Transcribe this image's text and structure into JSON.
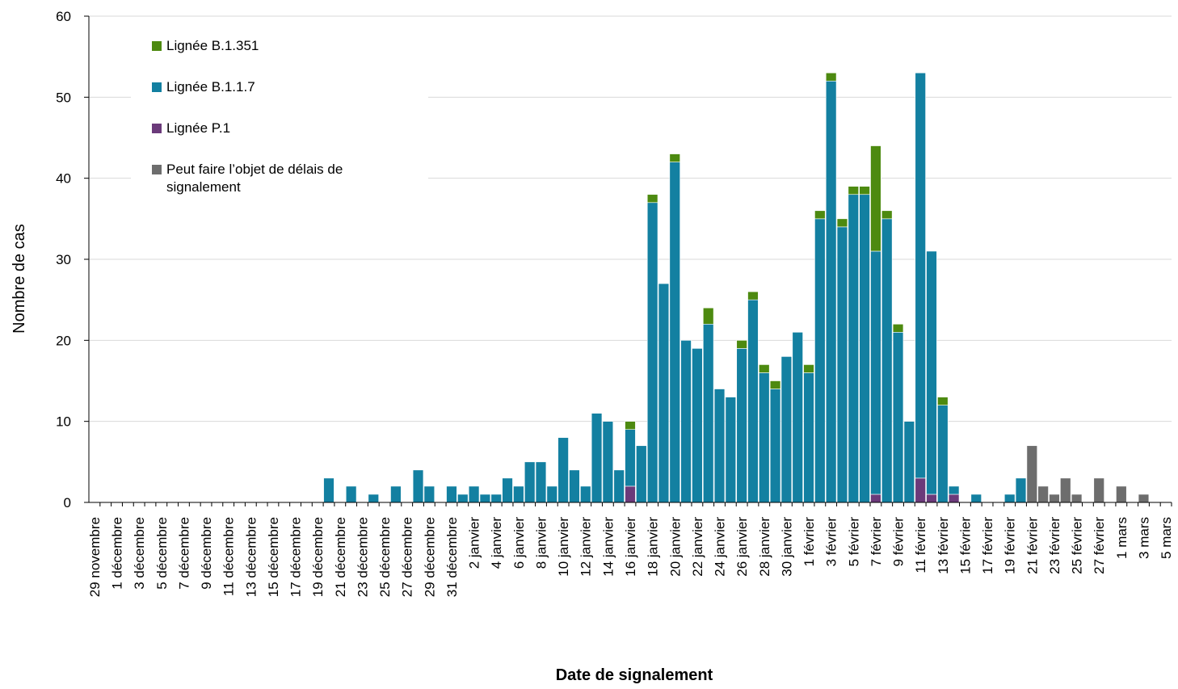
{
  "chart_data": {
    "type": "bar",
    "stacked": true,
    "y_label": "Nombre de cas",
    "x_label": "Date de signalement",
    "ylim": [
      0,
      60
    ],
    "yticks": [
      0,
      10,
      20,
      30,
      40,
      50,
      60
    ],
    "grid": true,
    "legend": "upper left",
    "categories": [
      "29 novembre",
      null,
      "1 décembre",
      null,
      "3 décembre",
      null,
      "5 décembre",
      null,
      "7 décembre",
      null,
      "9 décembre",
      null,
      "11 décembre",
      null,
      "13 décembre",
      null,
      "15 décembre",
      null,
      "17 décembre",
      null,
      "19 décembre",
      null,
      "21 décembre",
      null,
      "23 décembre",
      null,
      "25 décembre",
      null,
      "27 décembre",
      null,
      "29 décembre",
      null,
      "31 décembre",
      null,
      "2 janvier",
      null,
      "4 janvier",
      null,
      "6 janvier",
      null,
      "8 janvier",
      null,
      "10 janvier",
      null,
      "12 janvier",
      null,
      "14 janvier",
      null,
      "16 janvier",
      null,
      "18 janvier",
      null,
      "20 janvier",
      null,
      "22 janvier",
      null,
      "24 janvier",
      null,
      "26 janvier",
      null,
      "28 janvier",
      null,
      "30 janvier",
      null,
      "1 février",
      null,
      "3 février",
      null,
      "5 février",
      null,
      "7 février",
      null,
      "9 février",
      null,
      "11 février",
      null,
      "13 février",
      null,
      "15 février",
      null,
      "17 février",
      null,
      "19 février",
      null,
      "21 février",
      null,
      "23 février",
      null,
      "25 février",
      null,
      "27 février",
      null,
      "1 mars",
      null,
      "3 mars",
      null,
      "5 mars"
    ],
    "series": [
      {
        "name": "Lignée B.1.351",
        "color": "#4d8a10",
        "values": [
          0,
          0,
          0,
          0,
          0,
          0,
          0,
          0,
          0,
          0,
          0,
          0,
          0,
          0,
          0,
          0,
          0,
          0,
          0,
          0,
          0,
          0,
          0,
          0,
          0,
          0,
          0,
          0,
          0,
          0,
          0,
          0,
          0,
          0,
          0,
          0,
          0,
          0,
          0,
          0,
          0,
          0,
          0,
          0,
          0,
          0,
          0,
          0,
          1,
          0,
          1,
          0,
          1,
          0,
          0,
          2,
          0,
          0,
          1,
          1,
          1,
          1,
          0,
          0,
          1,
          1,
          1,
          1,
          1,
          1,
          13,
          1,
          1,
          0,
          0,
          0,
          1,
          0,
          0,
          0,
          0,
          0,
          0,
          0,
          0,
          0,
          0,
          0,
          0,
          0,
          0,
          0,
          0,
          0,
          0,
          0,
          0
        ]
      },
      {
        "name": "Lignée B.1.1.7",
        "color": "#1380a1",
        "values": [
          0,
          0,
          0,
          0,
          0,
          0,
          0,
          0,
          0,
          0,
          0,
          0,
          0,
          0,
          0,
          0,
          0,
          0,
          0,
          0,
          0,
          3,
          0,
          2,
          0,
          1,
          0,
          2,
          0,
          4,
          2,
          0,
          2,
          1,
          2,
          1,
          1,
          3,
          2,
          5,
          5,
          2,
          8,
          4,
          2,
          11,
          10,
          4,
          7,
          7,
          37,
          27,
          42,
          20,
          19,
          22,
          14,
          13,
          19,
          25,
          16,
          14,
          18,
          21,
          16,
          35,
          52,
          34,
          38,
          38,
          30,
          35,
          21,
          10,
          50,
          30,
          12,
          1,
          0,
          1,
          0,
          0,
          1,
          3,
          0,
          0,
          0,
          0,
          0,
          0,
          0,
          0,
          0,
          0,
          0,
          0,
          0
        ]
      },
      {
        "name": "Lignée P.1",
        "color": "#6b3a7a",
        "values": [
          0,
          0,
          0,
          0,
          0,
          0,
          0,
          0,
          0,
          0,
          0,
          0,
          0,
          0,
          0,
          0,
          0,
          0,
          0,
          0,
          0,
          0,
          0,
          0,
          0,
          0,
          0,
          0,
          0,
          0,
          0,
          0,
          0,
          0,
          0,
          0,
          0,
          0,
          0,
          0,
          0,
          0,
          0,
          0,
          0,
          0,
          0,
          0,
          2,
          0,
          0,
          0,
          0,
          0,
          0,
          0,
          0,
          0,
          0,
          0,
          0,
          0,
          0,
          0,
          0,
          0,
          0,
          0,
          0,
          0,
          1,
          0,
          0,
          0,
          3,
          1,
          0,
          1,
          0,
          0,
          0,
          0,
          0,
          0,
          0,
          0,
          0,
          0,
          0,
          0,
          0,
          0,
          0,
          0,
          0,
          0,
          0
        ]
      },
      {
        "name": "Peut faire l’objet de délais de signalement",
        "color": "#6d6d6d",
        "values": [
          0,
          0,
          0,
          0,
          0,
          0,
          0,
          0,
          0,
          0,
          0,
          0,
          0,
          0,
          0,
          0,
          0,
          0,
          0,
          0,
          0,
          0,
          0,
          0,
          0,
          0,
          0,
          0,
          0,
          0,
          0,
          0,
          0,
          0,
          0,
          0,
          0,
          0,
          0,
          0,
          0,
          0,
          0,
          0,
          0,
          0,
          0,
          0,
          0,
          0,
          0,
          0,
          0,
          0,
          0,
          0,
          0,
          0,
          0,
          0,
          0,
          0,
          0,
          0,
          0,
          0,
          0,
          0,
          0,
          0,
          0,
          0,
          0,
          0,
          0,
          0,
          0,
          0,
          0,
          0,
          0,
          0,
          0,
          0,
          7,
          2,
          1,
          3,
          1,
          0,
          3,
          0,
          2,
          0,
          1,
          0,
          0
        ]
      }
    ]
  }
}
